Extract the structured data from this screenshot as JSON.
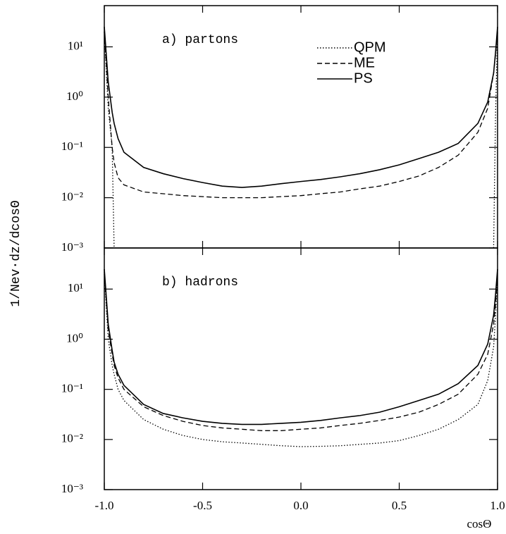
{
  "chart_data": [
    {
      "type": "line",
      "title": "a) partons",
      "ylabel": "1/Nev·dz/dcosΘ",
      "log": true,
      "legend": "upper right",
      "xlim": [
        -1,
        1
      ],
      "ylim": [
        0.001,
        66
      ],
      "yticks": [
        {
          "value": 0.001,
          "label": "10⁻³"
        },
        {
          "value": 0.01,
          "label": "10⁻²"
        },
        {
          "value": 0.1,
          "label": "10⁻¹"
        },
        {
          "value": 1,
          "label": "10⁰"
        },
        {
          "value": 10,
          "label": "10¹"
        }
      ],
      "x": [
        -1,
        -0.98,
        -0.96,
        -0.95,
        -0.93,
        -0.9,
        -0.8,
        -0.7,
        -0.6,
        -0.5,
        -0.4,
        -0.3,
        -0.2,
        -0.1,
        0,
        0.1,
        0.2,
        0.3,
        0.4,
        0.5,
        0.6,
        0.7,
        0.8,
        0.9,
        0.95,
        0.98,
        0.99,
        1
      ],
      "series": [
        {
          "name": "QPM",
          "color": "#000000",
          "dash": "dotted",
          "values": [
            20,
            0.6,
            0.1,
            0.001,
            null,
            null,
            null,
            null,
            null,
            null,
            null,
            null,
            null,
            null,
            null,
            null,
            null,
            null,
            null,
            null,
            null,
            null,
            null,
            null,
            null,
            0.001,
            0.5,
            20
          ]
        },
        {
          "name": "ME",
          "color": "#000000",
          "dash": "dashed",
          "values": [
            20,
            1,
            0.1,
            0.05,
            0.025,
            0.018,
            0.013,
            0.012,
            0.011,
            0.0105,
            0.01,
            0.01,
            0.01,
            0.0105,
            0.011,
            0.012,
            0.013,
            0.015,
            0.017,
            0.021,
            0.027,
            0.04,
            0.07,
            0.2,
            0.6,
            3,
            7,
            20
          ]
        },
        {
          "name": "PS",
          "color": "#000000",
          "dash": "solid",
          "values": [
            25,
            2,
            0.5,
            0.3,
            0.15,
            0.08,
            0.04,
            0.03,
            0.024,
            0.02,
            0.017,
            0.016,
            0.017,
            0.019,
            0.021,
            0.023,
            0.026,
            0.03,
            0.036,
            0.045,
            0.06,
            0.08,
            0.12,
            0.3,
            0.8,
            3,
            8,
            25
          ]
        }
      ]
    },
    {
      "type": "line",
      "title": "b) hadrons",
      "xlabel": "cosΘ",
      "log": true,
      "xlim": [
        -1,
        1
      ],
      "ylim": [
        0.001,
        66
      ],
      "xticks": [
        {
          "value": -1,
          "label": "-1.0"
        },
        {
          "value": -0.5,
          "label": "-0.5"
        },
        {
          "value": 0,
          "label": "0.0"
        },
        {
          "value": 0.5,
          "label": "0.5"
        },
        {
          "value": 1,
          "label": "1.0"
        }
      ],
      "yticks": [
        {
          "value": 0.001,
          "label": "10⁻³"
        },
        {
          "value": 0.01,
          "label": "10⁻²"
        },
        {
          "value": 0.1,
          "label": "10⁻¹"
        },
        {
          "value": 1,
          "label": "10⁰"
        },
        {
          "value": 10,
          "label": "10¹"
        }
      ],
      "x": [
        -1,
        -0.98,
        -0.96,
        -0.95,
        -0.93,
        -0.9,
        -0.8,
        -0.7,
        -0.6,
        -0.5,
        -0.4,
        -0.3,
        -0.2,
        -0.1,
        0,
        0.1,
        0.2,
        0.3,
        0.4,
        0.5,
        0.6,
        0.7,
        0.8,
        0.9,
        0.95,
        0.98,
        0.99,
        1
      ],
      "series": [
        {
          "name": "QPM",
          "color": "#000000",
          "dash": "dotted",
          "values": [
            20,
            1,
            0.3,
            0.2,
            0.1,
            0.06,
            0.025,
            0.016,
            0.012,
            0.01,
            0.009,
            0.0085,
            0.008,
            0.0075,
            0.0072,
            0.0073,
            0.0075,
            0.008,
            0.0085,
            0.0095,
            0.012,
            0.016,
            0.025,
            0.05,
            0.15,
            0.7,
            3,
            20
          ]
        },
        {
          "name": "ME",
          "color": "#000000",
          "dash": "dashed",
          "values": [
            22,
            1.5,
            0.5,
            0.3,
            0.17,
            0.1,
            0.045,
            0.03,
            0.023,
            0.019,
            0.017,
            0.016,
            0.015,
            0.015,
            0.016,
            0.017,
            0.019,
            0.021,
            0.024,
            0.028,
            0.035,
            0.05,
            0.08,
            0.2,
            0.5,
            2,
            5,
            22
          ]
        },
        {
          "name": "PS",
          "color": "#000000",
          "dash": "solid",
          "values": [
            25,
            2,
            0.6,
            0.35,
            0.2,
            0.12,
            0.05,
            0.033,
            0.027,
            0.023,
            0.021,
            0.02,
            0.02,
            0.021,
            0.022,
            0.024,
            0.027,
            0.03,
            0.035,
            0.045,
            0.06,
            0.08,
            0.13,
            0.3,
            0.8,
            3,
            8,
            25
          ]
        }
      ]
    }
  ]
}
